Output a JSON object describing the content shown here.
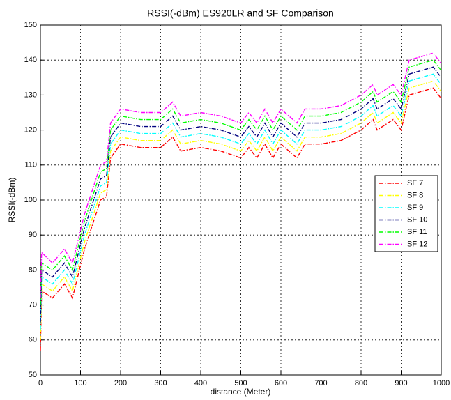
{
  "chart_data": {
    "type": "line",
    "title": "RSSI(-dBm) ES920LR and SF Comparison",
    "xlabel": "distance (Meter)",
    "ylabel": "RSSI(-dBm)",
    "x": [
      0,
      3,
      30,
      60,
      80,
      110,
      150,
      165,
      175,
      200,
      250,
      300,
      330,
      350,
      400,
      450,
      500,
      520,
      540,
      560,
      580,
      600,
      640,
      660,
      700,
      750,
      800,
      830,
      840,
      880,
      900,
      920,
      950,
      980,
      1000
    ],
    "series": [
      {
        "name": "SF 7",
        "color": "#ff0000",
        "values": [
          57,
          74,
          72,
          76,
          72,
          86,
          100,
          101,
          112,
          116,
          115,
          115,
          118,
          114,
          115,
          114,
          112,
          115,
          112,
          116,
          112,
          116,
          112,
          116,
          116,
          117,
          120,
          123,
          120,
          123,
          120,
          130,
          131,
          132,
          129
        ]
      },
      {
        "name": "SF 8",
        "color": "#ffff00",
        "values": [
          60,
          76,
          74,
          78,
          74,
          88,
          102,
          103,
          114,
          118,
          117,
          117,
          120,
          116,
          117,
          116,
          114,
          117,
          114,
          118,
          114,
          118,
          114,
          118,
          118,
          119,
          122,
          125,
          122,
          125,
          122,
          132,
          133,
          134,
          131
        ]
      },
      {
        "name": "SF 9",
        "color": "#00ffff",
        "values": [
          63,
          78,
          76,
          80,
          76,
          90,
          104,
          105,
          116,
          120,
          119,
          119,
          122,
          118,
          119,
          118,
          116,
          119,
          116,
          120,
          116,
          120,
          116,
          120,
          120,
          121,
          124,
          127,
          124,
          127,
          124,
          134,
          135,
          136,
          133
        ]
      },
      {
        "name": "SF 10",
        "color": "#00007f",
        "values": [
          65,
          80,
          78,
          82,
          78,
          92,
          106,
          107,
          118,
          122,
          121,
          121,
          124,
          120,
          121,
          120,
          118,
          121,
          118,
          122,
          118,
          122,
          118,
          122,
          122,
          123,
          126,
          129,
          126,
          129,
          126,
          136,
          137,
          138,
          135
        ]
      },
      {
        "name": "SF 11",
        "color": "#00ff00",
        "values": [
          70,
          82,
          80,
          84,
          80,
          94,
          108,
          109,
          120,
          124,
          123,
          123,
          126,
          122,
          123,
          122,
          120,
          123,
          120,
          124,
          120,
          124,
          120,
          124,
          124,
          125,
          128,
          131,
          128,
          131,
          128,
          138,
          139,
          140,
          137
        ]
      },
      {
        "name": "SF 12",
        "color": "#ff00ff",
        "values": [
          72,
          85,
          82,
          86,
          82,
          96,
          110,
          111,
          122,
          126,
          125,
          125,
          128,
          124,
          125,
          124,
          122,
          125,
          122,
          126,
          122,
          126,
          122,
          126,
          126,
          127,
          130,
          133,
          130,
          133,
          130,
          140,
          141,
          142,
          139
        ]
      }
    ],
    "xlim": [
      0,
      1000
    ],
    "xticks": [
      0,
      100,
      200,
      300,
      400,
      500,
      600,
      700,
      800,
      900,
      1000
    ],
    "ylim": [
      50,
      150
    ],
    "yticks": [
      50,
      60,
      70,
      80,
      90,
      100,
      110,
      120,
      130,
      140,
      150
    ],
    "grid": true,
    "legend": "right"
  }
}
